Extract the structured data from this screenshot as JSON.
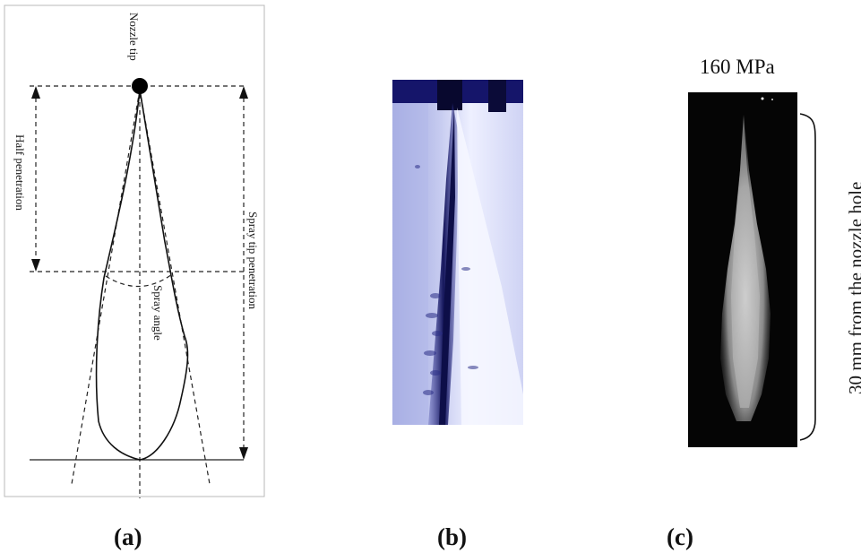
{
  "panel_a": {
    "labels": {
      "nozzle_tip": "Nozzle tip",
      "half_penetration": "Half penetration",
      "spray_tip_penetration": "Spray tip penetration",
      "spray_angle": "Spray angle"
    },
    "caption": "(a)"
  },
  "panel_b": {
    "caption": "(b)",
    "colors": {
      "background": "#9ea6e0",
      "dark_core": "#15165a",
      "highlight": "#f4f6ff"
    }
  },
  "panel_c": {
    "pressure_label": "160 MPa",
    "distance_label": "30 mm from the nozzle  hole",
    "caption": "(c)",
    "colors": {
      "background": "#050505",
      "spray": "#d6d6d6"
    }
  }
}
